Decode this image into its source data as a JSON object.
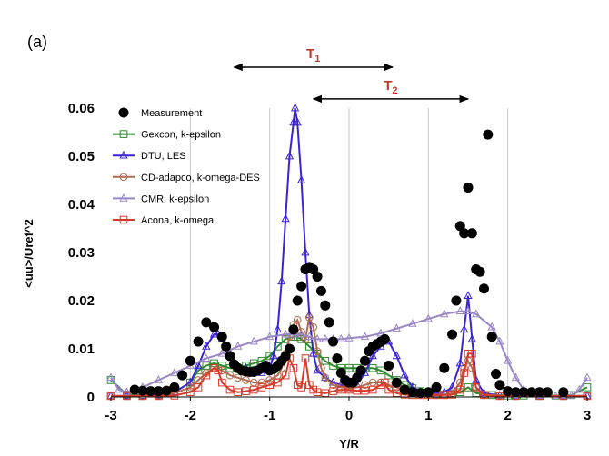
{
  "panel_label": "(a)",
  "chart_data": {
    "type": "line",
    "title": "",
    "xlabel": "Y/R",
    "ylabel": "<uu>/Uref^2",
    "xlim": [
      -3,
      3
    ],
    "ylim": [
      0,
      0.06
    ],
    "x_ticks": [
      "-3",
      "-2",
      "-1",
      "0",
      "1",
      "2",
      "3"
    ],
    "y_ticks": [
      "0",
      "0.01",
      "0.02",
      "0.03",
      "0.04",
      "0.05",
      "0.06"
    ],
    "grid": "vertical",
    "legend_position": "top-left",
    "annotations": [
      {
        "label": "T",
        "subscript": "1",
        "color": "#c0392b",
        "x_from": -1.45,
        "x_to": 0.55,
        "y": 0.0685
      },
      {
        "label": "T",
        "subscript": "2",
        "color": "#c0392b",
        "x_from": -0.45,
        "x_to": 1.5,
        "y": 0.0619
      }
    ],
    "series": [
      {
        "name": "Measurement",
        "style": "markers",
        "marker": "filled-circle",
        "color": "#000000",
        "x": [
          -2.7,
          -2.6,
          -2.5,
          -2.4,
          -2.3,
          -2.2,
          -2.1,
          -2.0,
          -1.9,
          -1.8,
          -1.7,
          -1.6,
          -1.55,
          -1.5,
          -1.45,
          -1.4,
          -1.35,
          -1.3,
          -1.25,
          -1.2,
          -1.15,
          -1.1,
          -1.05,
          -1.0,
          -0.95,
          -0.9,
          -0.85,
          -0.8,
          -0.75,
          -0.7,
          -0.65,
          -0.6,
          -0.55,
          -0.5,
          -0.45,
          -0.4,
          -0.35,
          -0.3,
          -0.25,
          -0.2,
          -0.15,
          -0.1,
          -0.05,
          0.0,
          0.05,
          0.1,
          0.15,
          0.2,
          0.25,
          0.3,
          0.35,
          0.4,
          0.45,
          0.5,
          0.6,
          0.7,
          0.8,
          0.9,
          1.0,
          1.1,
          1.2,
          1.3,
          1.35,
          1.4,
          1.45,
          1.5,
          1.55,
          1.6,
          1.65,
          1.7,
          1.75,
          1.8,
          1.85,
          1.9,
          2.0,
          2.1,
          2.2,
          2.3,
          2.4,
          2.5,
          2.7
        ],
        "y": [
          0.0015,
          0.0013,
          0.0012,
          0.0012,
          0.0013,
          0.002,
          0.0045,
          0.0075,
          0.0115,
          0.0155,
          0.0145,
          0.0125,
          0.0105,
          0.0085,
          0.0068,
          0.006,
          0.0055,
          0.0053,
          0.0052,
          0.0052,
          0.0055,
          0.006,
          0.0065,
          0.0055,
          0.0058,
          0.0065,
          0.0075,
          0.0085,
          0.01,
          0.014,
          0.02,
          0.023,
          0.0265,
          0.027,
          0.0265,
          0.025,
          0.022,
          0.019,
          0.0155,
          0.0115,
          0.008,
          0.005,
          0.0035,
          0.003,
          0.003,
          0.004,
          0.0055,
          0.0075,
          0.0095,
          0.0105,
          0.011,
          0.0115,
          0.012,
          0.0065,
          0.003,
          0.0015,
          0.001,
          0.0008,
          0.001,
          0.002,
          0.006,
          0.013,
          0.02,
          0.0355,
          0.034,
          0.0435,
          0.034,
          0.0265,
          0.026,
          0.0225,
          0.0545,
          0.0125,
          0.0048,
          0.0025,
          0.0012,
          0.001,
          0.001,
          0.001,
          0.001,
          0.001,
          0.001
        ]
      },
      {
        "name": "Gexcon, k-epsilon",
        "style": "line+markers",
        "marker": "open-square",
        "color": "#2e8b2e",
        "x": [
          -3.0,
          -2.8,
          -2.6,
          -2.4,
          -2.2,
          -2.0,
          -1.9,
          -1.8,
          -1.7,
          -1.6,
          -1.5,
          -1.4,
          -1.3,
          -1.2,
          -1.1,
          -1.0,
          -0.9,
          -0.8,
          -0.7,
          -0.65,
          -0.6,
          -0.5,
          -0.4,
          -0.3,
          -0.2,
          -0.1,
          0.0,
          0.1,
          0.2,
          0.3,
          0.4,
          0.5,
          0.6,
          0.7,
          0.8,
          0.9,
          1.0,
          1.1,
          1.2,
          1.3,
          1.4,
          1.5,
          1.6,
          1.8,
          2.0,
          2.2,
          2.4,
          2.6,
          2.8,
          3.0
        ],
        "y": [
          0.0035,
          0.0005,
          0.0004,
          0.0005,
          0.001,
          0.003,
          0.0055,
          0.0065,
          0.007,
          0.0065,
          0.006,
          0.006,
          0.0065,
          0.007,
          0.0075,
          0.0085,
          0.0105,
          0.012,
          0.0125,
          0.0125,
          0.012,
          0.0105,
          0.009,
          0.0075,
          0.0065,
          0.006,
          0.006,
          0.006,
          0.006,
          0.006,
          0.0055,
          0.0045,
          0.0035,
          0.0025,
          0.0018,
          0.0012,
          0.0008,
          0.0006,
          0.0005,
          0.0005,
          0.001,
          0.002,
          0.0008,
          0.0004,
          0.0003,
          0.0003,
          0.0003,
          0.0003,
          0.0004,
          0.002
        ]
      },
      {
        "name": "DTU, LES",
        "style": "line+markers",
        "marker": "open-triangle",
        "color": "#3a22d6",
        "x": [
          -3.0,
          -2.8,
          -2.6,
          -2.4,
          -2.2,
          -2.0,
          -1.9,
          -1.8,
          -1.7,
          -1.65,
          -1.6,
          -1.5,
          -1.4,
          -1.3,
          -1.2,
          -1.1,
          -1.0,
          -0.95,
          -0.9,
          -0.85,
          -0.8,
          -0.75,
          -0.7,
          -0.68,
          -0.65,
          -0.6,
          -0.55,
          -0.5,
          -0.45,
          -0.4,
          -0.3,
          -0.2,
          -0.1,
          0.0,
          0.1,
          0.2,
          0.3,
          0.4,
          0.5,
          0.6,
          0.7,
          0.8,
          0.9,
          1.0,
          1.1,
          1.2,
          1.3,
          1.4,
          1.45,
          1.5,
          1.55,
          1.6,
          1.7,
          1.9,
          2.1,
          2.4,
          2.7,
          3.0
        ],
        "y": [
          0.0002,
          0.0002,
          0.0002,
          0.0003,
          0.001,
          0.003,
          0.0065,
          0.0105,
          0.013,
          0.013,
          0.012,
          0.009,
          0.0065,
          0.006,
          0.0055,
          0.005,
          0.006,
          0.0085,
          0.014,
          0.024,
          0.037,
          0.05,
          0.057,
          0.06,
          0.057,
          0.045,
          0.03,
          0.017,
          0.009,
          0.0055,
          0.004,
          0.003,
          0.0025,
          0.002,
          0.0025,
          0.005,
          0.0085,
          0.0105,
          0.0115,
          0.0085,
          0.0045,
          0.002,
          0.001,
          0.0008,
          0.0008,
          0.001,
          0.002,
          0.007,
          0.014,
          0.021,
          0.012,
          0.0035,
          0.0008,
          0.0003,
          0.0002,
          0.0002,
          0.0002,
          0.0002
        ]
      },
      {
        "name": "CD-adapco, k-omega-DES",
        "style": "line+markers",
        "marker": "open-circle",
        "color": "#b06a50",
        "x": [
          -3.0,
          -2.8,
          -2.6,
          -2.4,
          -2.2,
          -2.0,
          -1.9,
          -1.8,
          -1.7,
          -1.6,
          -1.5,
          -1.4,
          -1.3,
          -1.2,
          -1.1,
          -1.0,
          -0.9,
          -0.85,
          -0.8,
          -0.75,
          -0.7,
          -0.65,
          -0.6,
          -0.55,
          -0.5,
          -0.45,
          -0.4,
          -0.35,
          -0.3,
          -0.2,
          -0.1,
          0.0,
          0.1,
          0.2,
          0.3,
          0.4,
          0.5,
          0.6,
          0.7,
          0.8,
          0.9,
          1.0,
          1.1,
          1.2,
          1.3,
          1.4,
          1.45,
          1.5,
          1.55,
          1.6,
          1.7,
          1.9,
          2.1,
          2.4,
          2.7,
          3.0
        ],
        "y": [
          0.0002,
          0.0002,
          0.0002,
          0.0003,
          0.0008,
          0.002,
          0.0035,
          0.005,
          0.006,
          0.0055,
          0.0045,
          0.004,
          0.0035,
          0.003,
          0.003,
          0.0035,
          0.0045,
          0.006,
          0.009,
          0.0125,
          0.015,
          0.016,
          0.0135,
          0.012,
          0.0165,
          0.0145,
          0.0095,
          0.006,
          0.004,
          0.0025,
          0.002,
          0.0018,
          0.002,
          0.0025,
          0.003,
          0.003,
          0.0025,
          0.002,
          0.0015,
          0.001,
          0.0008,
          0.0006,
          0.0005,
          0.0005,
          0.0008,
          0.003,
          0.006,
          0.0075,
          0.006,
          0.002,
          0.0005,
          0.0003,
          0.0002,
          0.0002,
          0.0002,
          0.0002
        ]
      },
      {
        "name": "CMR, k-epsilon",
        "style": "line+markers",
        "marker": "open-triangle",
        "color": "#9a86c4",
        "x": [
          -3.0,
          -2.9,
          -2.8,
          -2.6,
          -2.4,
          -2.2,
          -2.0,
          -1.8,
          -1.6,
          -1.4,
          -1.2,
          -1.0,
          -0.8,
          -0.7,
          -0.6,
          -0.5,
          -0.4,
          -0.3,
          -0.2,
          -0.1,
          0.0,
          0.2,
          0.4,
          0.6,
          0.8,
          1.0,
          1.2,
          1.4,
          1.5,
          1.6,
          1.8,
          1.9,
          2.0,
          2.1,
          2.2,
          2.4,
          2.6,
          2.8,
          2.9,
          3.0
        ],
        "y": [
          0.004,
          0.0015,
          0.001,
          0.002,
          0.0035,
          0.005,
          0.0065,
          0.008,
          0.009,
          0.0105,
          0.0115,
          0.0125,
          0.013,
          0.013,
          0.013,
          0.0125,
          0.012,
          0.012,
          0.012,
          0.012,
          0.0122,
          0.0125,
          0.0132,
          0.0142,
          0.0152,
          0.0162,
          0.0172,
          0.0178,
          0.0178,
          0.0172,
          0.0145,
          0.0115,
          0.0075,
          0.004,
          0.0015,
          0.0003,
          0.0002,
          0.0003,
          0.0015,
          0.004
        ]
      },
      {
        "name": "Acona, k-omega",
        "style": "line+markers",
        "marker": "open-square",
        "color": "#d83a2a",
        "x": [
          -3.0,
          -2.8,
          -2.6,
          -2.4,
          -2.2,
          -2.0,
          -1.9,
          -1.8,
          -1.7,
          -1.65,
          -1.6,
          -1.5,
          -1.4,
          -1.3,
          -1.2,
          -1.1,
          -1.0,
          -0.9,
          -0.8,
          -0.75,
          -0.7,
          -0.65,
          -0.6,
          -0.55,
          -0.5,
          -0.45,
          -0.4,
          -0.3,
          -0.2,
          -0.1,
          0.0,
          0.1,
          0.2,
          0.3,
          0.4,
          0.45,
          0.5,
          0.6,
          0.7,
          0.8,
          0.9,
          1.0,
          1.1,
          1.2,
          1.3,
          1.4,
          1.45,
          1.5,
          1.55,
          1.6,
          1.7,
          1.9,
          2.1,
          2.4,
          2.7,
          3.0
        ],
        "y": [
          0.0002,
          0.0002,
          0.0002,
          0.0002,
          0.0003,
          0.001,
          0.002,
          0.0045,
          0.006,
          0.0055,
          0.003,
          0.0015,
          0.001,
          0.0012,
          0.0015,
          0.002,
          0.0025,
          0.003,
          0.0045,
          0.008,
          0.006,
          0.0025,
          0.002,
          0.008,
          0.0025,
          0.0015,
          0.001,
          0.0008,
          0.0012,
          0.0015,
          0.0015,
          0.0013,
          0.0013,
          0.0015,
          0.0025,
          0.003,
          0.0015,
          0.0008,
          0.0005,
          0.0004,
          0.0004,
          0.0004,
          0.0004,
          0.0004,
          0.0005,
          0.0015,
          0.005,
          0.009,
          0.009,
          0.002,
          0.0004,
          0.0002,
          0.0002,
          0.0002,
          0.0002,
          0.0002
        ]
      }
    ]
  }
}
